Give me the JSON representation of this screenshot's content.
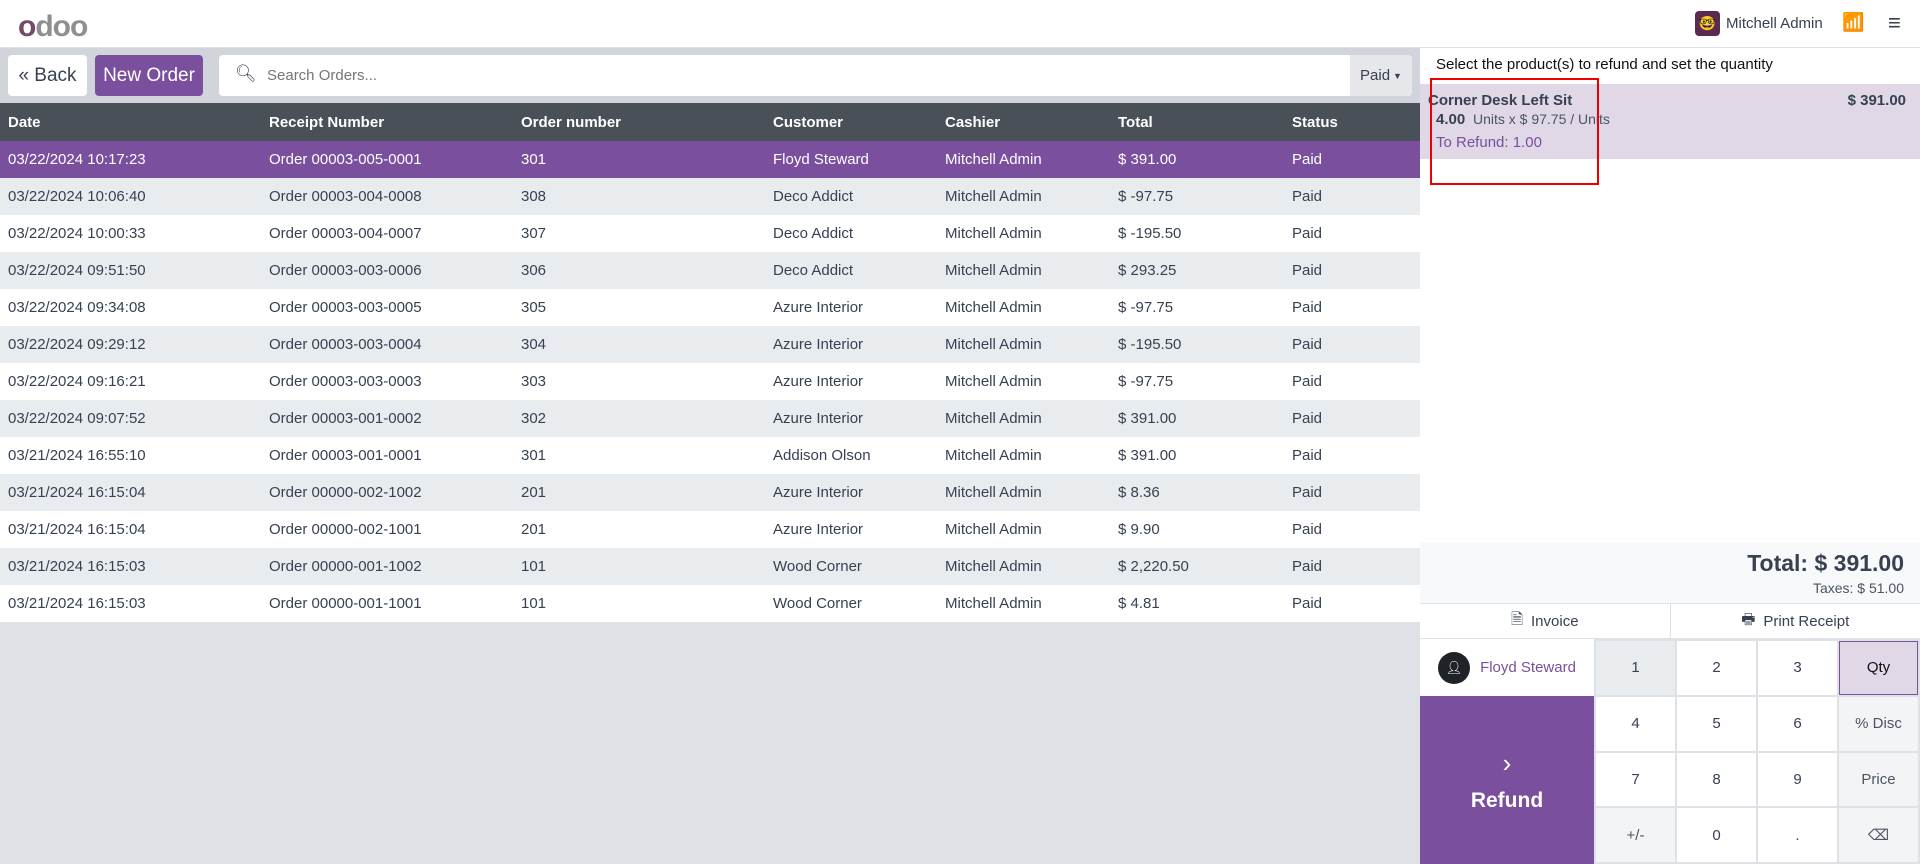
{
  "header": {
    "logo": "odoo",
    "user": "Mitchell Admin"
  },
  "toolbar": {
    "back": "« Back",
    "new_order": "New Order",
    "search_placeholder": "Search Orders...",
    "filter": "Paid"
  },
  "table": {
    "columns": [
      "Date",
      "Receipt Number",
      "Order number",
      "Customer",
      "Cashier",
      "Total",
      "Status"
    ],
    "rows": [
      [
        "03/22/2024 10:17:23",
        "Order 00003-005-0001",
        "301",
        "Floyd Steward",
        "Mitchell Admin",
        "$ 391.00",
        "Paid"
      ],
      [
        "03/22/2024 10:06:40",
        "Order 00003-004-0008",
        "308",
        "Deco Addict",
        "Mitchell Admin",
        "$ -97.75",
        "Paid"
      ],
      [
        "03/22/2024 10:00:33",
        "Order 00003-004-0007",
        "307",
        "Deco Addict",
        "Mitchell Admin",
        "$ -195.50",
        "Paid"
      ],
      [
        "03/22/2024 09:51:50",
        "Order 00003-003-0006",
        "306",
        "Deco Addict",
        "Mitchell Admin",
        "$ 293.25",
        "Paid"
      ],
      [
        "03/22/2024 09:34:08",
        "Order 00003-003-0005",
        "305",
        "Azure Interior",
        "Mitchell Admin",
        "$ -97.75",
        "Paid"
      ],
      [
        "03/22/2024 09:29:12",
        "Order 00003-003-0004",
        "304",
        "Azure Interior",
        "Mitchell Admin",
        "$ -195.50",
        "Paid"
      ],
      [
        "03/22/2024 09:16:21",
        "Order 00003-003-0003",
        "303",
        "Azure Interior",
        "Mitchell Admin",
        "$ -97.75",
        "Paid"
      ],
      [
        "03/22/2024 09:07:52",
        "Order 00003-001-0002",
        "302",
        "Azure Interior",
        "Mitchell Admin",
        "$ 391.00",
        "Paid"
      ],
      [
        "03/21/2024 16:55:10",
        "Order 00003-001-0001",
        "301",
        "Addison Olson",
        "Mitchell Admin",
        "$ 391.00",
        "Paid"
      ],
      [
        "03/21/2024 16:15:04",
        "Order 00000-002-1002",
        "201",
        "Azure Interior",
        "Mitchell Admin",
        "$ 8.36",
        "Paid"
      ],
      [
        "03/21/2024 16:15:04",
        "Order 00000-002-1001",
        "201",
        "Azure Interior",
        "Mitchell Admin",
        "$ 9.90",
        "Paid"
      ],
      [
        "03/21/2024 16:15:03",
        "Order 00000-001-1002",
        "101",
        "Wood Corner",
        "Mitchell Admin",
        "$ 2,220.50",
        "Paid"
      ],
      [
        "03/21/2024 16:15:03",
        "Order 00000-001-1001",
        "101",
        "Wood Corner",
        "Mitchell Admin",
        "$ 4.81",
        "Paid"
      ]
    ]
  },
  "refund_panel": {
    "hint": "Select the product(s) to refund and set the quantity",
    "line": {
      "product": "Corner Desk Left Sit",
      "price": "$ 391.00",
      "qty": "4.00",
      "unit_text": "Units x $ 97.75 / Units",
      "to_refund": "To Refund: 1.00"
    },
    "total": "Total: $ 391.00",
    "taxes": "Taxes: $ 51.00",
    "invoice": "Invoice",
    "print_receipt": "Print Receipt",
    "customer": "Floyd Steward",
    "refund": "Refund",
    "keys": [
      "1",
      "2",
      "3",
      "Qty",
      "4",
      "5",
      "6",
      "% Disc",
      "7",
      "8",
      "9",
      "Price",
      "+/-",
      "0",
      ".",
      "⌫"
    ]
  },
  "colors": {
    "accent": "#7a4f9e",
    "header_row": "#495057",
    "highlight": "#e0d7e7"
  }
}
